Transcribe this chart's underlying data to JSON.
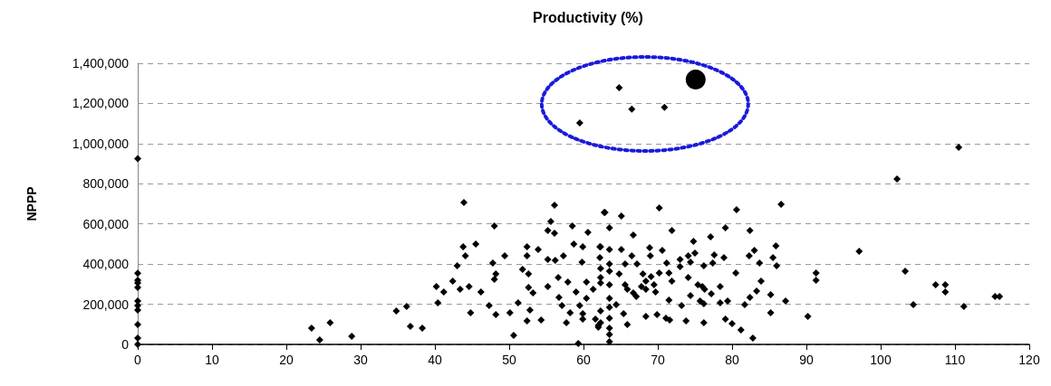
{
  "chart_data": {
    "type": "scatter",
    "title": "Productivity (%)",
    "ylabel": "NPPP",
    "xlim": [
      0,
      120
    ],
    "xticks": [
      0,
      10,
      20,
      30,
      40,
      50,
      60,
      70,
      80,
      90,
      100,
      110,
      120
    ],
    "ylim": [
      0,
      1400000
    ],
    "yticks": [
      {
        "value": 0,
        "label": "0"
      },
      {
        "value": 200000,
        "label": "200,000"
      },
      {
        "value": 400000,
        "label": "400,000"
      },
      {
        "value": 600000,
        "label": "600,000"
      },
      {
        "value": 800000,
        "label": "800,000"
      },
      {
        "value": 1000000,
        "label": "1,000,000"
      },
      {
        "value": 1200000,
        "label": "1,200,000"
      },
      {
        "value": 1400000,
        "label": "1,400,000"
      }
    ],
    "grid": "y",
    "marker": "diamond",
    "series": [
      {
        "color": "#000000",
        "x": [
          0,
          0,
          0,
          0,
          0,
          0,
          0,
          0,
          0,
          0,
          0,
          23.4,
          24.5,
          25.9,
          28.8,
          34.8,
          36.2,
          36.7,
          38.3,
          43.9,
          56.1,
          62.8,
          48,
          55.6,
          55.2,
          56.1,
          58.5,
          60.6,
          43.8,
          45.5,
          44.1,
          52.4,
          53.9,
          58.7,
          59.9,
          62.2,
          49.4,
          52.4,
          47.8,
          43,
          55.2,
          56.2,
          57.3,
          59.8,
          62.2,
          51.8,
          52.6,
          48.2,
          48,
          42.4,
          40.2,
          41.2,
          43.4,
          44.6,
          46.2,
          56.6,
          57.9,
          60.4,
          61.3,
          62.3,
          52.6,
          53.2,
          55.2,
          56.7,
          59,
          60.4,
          51.2,
          40.4,
          47.3,
          57.1,
          59.5,
          44.8,
          48.2,
          50.1,
          52.8,
          58.2,
          59.9,
          61.6,
          52.4,
          54.3,
          57.7,
          59.9,
          62,
          50.6,
          59.3,
          70.2,
          80.6,
          86.6,
          62.9,
          65.1,
          63.5,
          66.7,
          71.9,
          77.1,
          79.1,
          82.4,
          74.8,
          62.3,
          63.5,
          65.1,
          68.9,
          70.6,
          69,
          66.5,
          74.1,
          75,
          77.6,
          78.9,
          82.3,
          83,
          85.9,
          85.5,
          65.6,
          67.2,
          71.2,
          73,
          73,
          74.4,
          76.2,
          77.4,
          83.7,
          86,
          63.5,
          62.3,
          63.5,
          64.8,
          68,
          69.1,
          70.2,
          71.5,
          80.5,
          62.3,
          71.9,
          74.1,
          68.4,
          63.5,
          65.6,
          67.8,
          69.5,
          75.4,
          76,
          78.4,
          83.9,
          65.9,
          66.7,
          68.4,
          69.7,
          74.4,
          76.3,
          77.2,
          83.3,
          67.1,
          71.5,
          75.7,
          76.2,
          63.5,
          78.4,
          79.4,
          82.4,
          85.2,
          87.2,
          64.4,
          73.2,
          81.7,
          63.5,
          62.3,
          65.4,
          68.4,
          69.9,
          71.1,
          71.6,
          73.8,
          76.2,
          79.1,
          80,
          85.2,
          81.2,
          82.8,
          62.3,
          63.5,
          63.5,
          62,
          65.9,
          63.5,
          63.5,
          110.5,
          102.2,
          97.1,
          91.3,
          91.3,
          103.3,
          90.2,
          104.4,
          107.4,
          108.7,
          108.7,
          111.2,
          115.4,
          116
        ],
        "values": [
          925000,
          355000,
          320000,
          284000,
          216000,
          171000,
          99000,
          32000,
          0,
          194000,
          306000,
          81000,
          22000,
          108000,
          41000,
          167000,
          189000,
          90000,
          81000,
          707000,
          693000,
          657000,
          590000,
          612000,
          567000,
          554000,
          590000,
          558000,
          486000,
          500000,
          441000,
          486000,
          473000,
          500000,
          486000,
          486000,
          441000,
          441000,
          405000,
          392000,
          423000,
          419000,
          441000,
          410000,
          432000,
          374000,
          351000,
          351000,
          324000,
          315000,
          288000,
          261000,
          275000,
          288000,
          261000,
          333000,
          311000,
          311000,
          275000,
          306000,
          284000,
          257000,
          288000,
          234000,
          261000,
          230000,
          207000,
          207000,
          194000,
          194000,
          194000,
          158000,
          149000,
          158000,
          171000,
          158000,
          153000,
          126000,
          117000,
          122000,
          108000,
          126000,
          95000,
          45000,
          5000,
          680000,
          671000,
          698000,
          657000,
          639000,
          581000,
          545000,
          567000,
          536000,
          581000,
          567000,
          513000,
          486000,
          473000,
          473000,
          482000,
          468000,
          441000,
          441000,
          441000,
          455000,
          446000,
          432000,
          441000,
          468000,
          491000,
          432000,
          401000,
          401000,
          405000,
          423000,
          387000,
          410000,
          392000,
          405000,
          405000,
          392000,
          401000,
          378000,
          365000,
          351000,
          351000,
          338000,
          356000,
          356000,
          356000,
          333000,
          315000,
          333000,
          315000,
          297000,
          297000,
          288000,
          297000,
          297000,
          288000,
          288000,
          315000,
          275000,
          257000,
          275000,
          261000,
          243000,
          275000,
          252000,
          266000,
          239000,
          221000,
          216000,
          203000,
          230000,
          207000,
          216000,
          234000,
          248000,
          216000,
          198000,
          194000,
          198000,
          185000,
          167000,
          153000,
          140000,
          149000,
          131000,
          122000,
          117000,
          108000,
          126000,
          104000,
          158000,
          72000,
          32000,
          108000,
          81000,
          50000,
          86000,
          99000,
          14000,
          131000,
          981000,
          824000,
          464000,
          356000,
          320000,
          365000,
          140000,
          198000,
          297000,
          297000,
          261000,
          189000,
          239000,
          239000
        ]
      },
      {
        "color": "#000000",
        "x": [
          59.5,
          64.8,
          66.5,
          70.9
        ],
        "values": [
          1103000,
          1279000,
          1171000,
          1180000
        ]
      },
      {
        "color": "#000000",
        "marker": "circle",
        "x": [
          75.1
        ],
        "values": [
          1319000
        ]
      }
    ]
  }
}
